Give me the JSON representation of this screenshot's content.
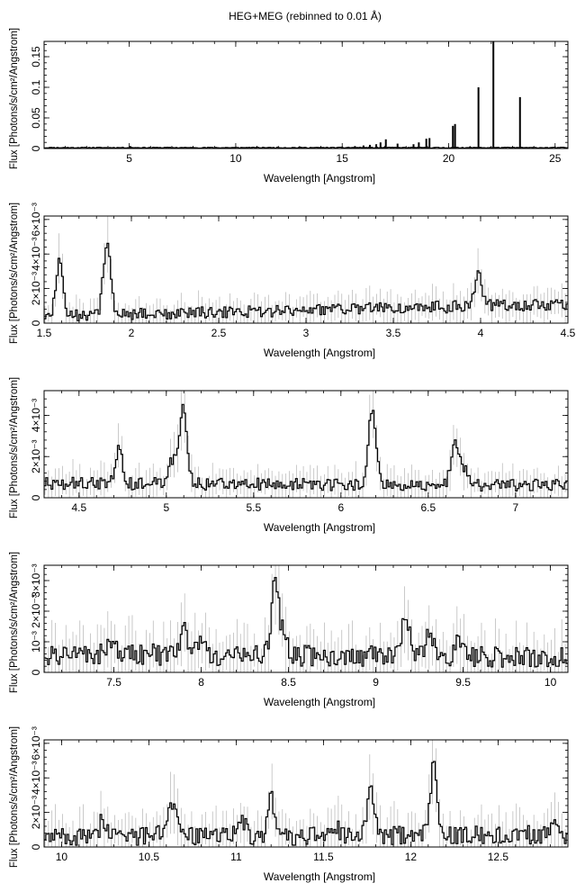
{
  "figure": {
    "title": "HEG+MEG (rebinned to 0.01 Å)"
  },
  "chart_data": [
    {
      "type": "line",
      "subtype": "histogram-spectrum",
      "xlabel": "Wavelength [Angstrom]",
      "ylabel": "Flux [Photons/s/cm²/Angstrom]",
      "xlim": [
        1.0,
        25.6
      ],
      "ylim": [
        0,
        0.175
      ],
      "xticks": [
        5,
        10,
        15,
        20,
        25
      ],
      "xtick_labels": [
        "5",
        "10",
        "15",
        "20",
        "25"
      ],
      "yticks": [
        0,
        0.05,
        0.1,
        0.15
      ],
      "ytick_labels": [
        "0",
        "0.05",
        "0.1",
        "0.15"
      ],
      "baseline": 0.0015,
      "lines": [
        {
          "x": 5.05,
          "y": 0.004
        },
        {
          "x": 15.0,
          "y": 0.003
        },
        {
          "x": 15.3,
          "y": 0.003
        },
        {
          "x": 15.6,
          "y": 0.004
        },
        {
          "x": 16.0,
          "y": 0.005
        },
        {
          "x": 16.3,
          "y": 0.006
        },
        {
          "x": 16.6,
          "y": 0.007
        },
        {
          "x": 16.8,
          "y": 0.01
        },
        {
          "x": 17.05,
          "y": 0.015
        },
        {
          "x": 17.6,
          "y": 0.008
        },
        {
          "x": 18.35,
          "y": 0.007
        },
        {
          "x": 18.6,
          "y": 0.01
        },
        {
          "x": 18.95,
          "y": 0.016
        },
        {
          "x": 19.1,
          "y": 0.017
        },
        {
          "x": 20.2,
          "y": 0.037
        },
        {
          "x": 20.3,
          "y": 0.04
        },
        {
          "x": 21.4,
          "y": 0.1
        },
        {
          "x": 22.1,
          "y": 0.175
        },
        {
          "x": 23.35,
          "y": 0.084
        }
      ]
    },
    {
      "type": "line",
      "subtype": "histogram-spectrum",
      "xlabel": "Wavelength [Angstrom]",
      "ylabel": "Flux [Photons/s/cm²/Angstrom]",
      "xlim": [
        1.5,
        4.5
      ],
      "ylim": [
        0,
        0.0062
      ],
      "xticks": [
        1.5,
        2,
        2.5,
        3,
        3.5,
        4,
        4.5
      ],
      "xtick_labels": [
        "1.5",
        "2",
        "2.5",
        "3",
        "3.5",
        "4",
        "4.5"
      ],
      "yticks": [
        0,
        0.002,
        0.004,
        0.006
      ],
      "ytick_labels": [
        "0",
        "2×10⁻³",
        "4×10⁻³",
        "6×10⁻³"
      ],
      "baseline_start": 0.0004,
      "baseline_end": 0.0011,
      "noise": 0.00035,
      "lines": [
        {
          "x": 1.59,
          "w": 0.02,
          "y": 0.0037
        },
        {
          "x": 1.86,
          "w": 0.02,
          "y": 0.0046
        },
        {
          "x": 3.99,
          "w": 0.02,
          "y": 0.0024
        }
      ]
    },
    {
      "type": "line",
      "subtype": "histogram-spectrum",
      "xlabel": "Wavelength [Angstrom]",
      "ylabel": "Flux [Photons/s/cm²/Angstrom]",
      "xlim": [
        4.3,
        7.3
      ],
      "ylim": [
        0,
        0.0052
      ],
      "xticks": [
        4.5,
        5,
        5.5,
        6,
        6.5,
        7
      ],
      "xtick_labels": [
        "4.5",
        "5",
        "5.5",
        "6",
        "6.5",
        "7"
      ],
      "yticks": [
        0,
        0.002,
        0.004
      ],
      "ytick_labels": [
        "0",
        "2×10⁻³",
        "4×10⁻³"
      ],
      "baseline_start": 0.0007,
      "baseline_end": 0.0006,
      "noise": 0.0003,
      "lines": [
        {
          "x": 4.73,
          "w": 0.02,
          "y": 0.0024
        },
        {
          "x": 5.04,
          "w": 0.03,
          "y": 0.0018
        },
        {
          "x": 5.1,
          "w": 0.02,
          "y": 0.0043
        },
        {
          "x": 6.18,
          "w": 0.02,
          "y": 0.0045
        },
        {
          "x": 6.65,
          "w": 0.02,
          "y": 0.0028
        },
        {
          "x": 6.7,
          "w": 0.02,
          "y": 0.0016
        }
      ]
    },
    {
      "type": "line",
      "subtype": "histogram-spectrum",
      "xlabel": "Wavelength [Angstrom]",
      "ylabel": "Flux [Photons/s/cm²/Angstrom]",
      "xlim": [
        7.1,
        10.1
      ],
      "ylim": [
        0,
        0.0035
      ],
      "xticks": [
        7.5,
        8,
        8.5,
        9,
        9.5,
        10
      ],
      "xtick_labels": [
        "7.5",
        "8",
        "8.5",
        "9",
        "9.5",
        "10"
      ],
      "yticks": [
        0,
        0.001,
        0.002,
        0.003
      ],
      "ytick_labels": [
        "0",
        "10⁻³",
        "2×10⁻³",
        "3×10⁻³"
      ],
      "baseline_start": 0.0006,
      "baseline_end": 0.0005,
      "noise": 0.00035,
      "lines": [
        {
          "x": 7.48,
          "w": 0.02,
          "y": 0.0011
        },
        {
          "x": 7.9,
          "w": 0.02,
          "y": 0.0014
        },
        {
          "x": 7.99,
          "w": 0.02,
          "y": 0.0011
        },
        {
          "x": 8.42,
          "w": 0.02,
          "y": 0.0026
        },
        {
          "x": 8.46,
          "w": 0.03,
          "y": 0.0013
        },
        {
          "x": 9.17,
          "w": 0.03,
          "y": 0.0016
        },
        {
          "x": 9.31,
          "w": 0.03,
          "y": 0.0012
        },
        {
          "x": 9.47,
          "w": 0.02,
          "y": 0.0011
        }
      ]
    },
    {
      "type": "line",
      "subtype": "histogram-spectrum",
      "xlabel": "Wavelength [Angstrom]",
      "ylabel": "Flux [Photons/s/cm²/Angstrom]",
      "xlim": [
        9.9,
        12.9
      ],
      "ylim": [
        0,
        0.0062
      ],
      "xticks": [
        10,
        10.5,
        11,
        11.5,
        12,
        12.5
      ],
      "xtick_labels": [
        "10",
        "10.5",
        "11",
        "11.5",
        "12",
        "12.5"
      ],
      "yticks": [
        0,
        0.002,
        0.004,
        0.006
      ],
      "ytick_labels": [
        "0",
        "2×10⁻³",
        "4×10⁻³",
        "6×10⁻³"
      ],
      "baseline_start": 0.0006,
      "baseline_end": 0.0007,
      "noise": 0.00055,
      "lines": [
        {
          "x": 10.24,
          "w": 0.02,
          "y": 0.0016
        },
        {
          "x": 10.63,
          "w": 0.03,
          "y": 0.0022
        },
        {
          "x": 11.03,
          "w": 0.02,
          "y": 0.0016
        },
        {
          "x": 11.2,
          "w": 0.02,
          "y": 0.0028
        },
        {
          "x": 11.55,
          "w": 0.03,
          "y": 0.0012
        },
        {
          "x": 11.77,
          "w": 0.02,
          "y": 0.0032
        },
        {
          "x": 12.13,
          "w": 0.02,
          "y": 0.0045
        },
        {
          "x": 12.83,
          "w": 0.02,
          "y": 0.0016
        }
      ]
    }
  ]
}
